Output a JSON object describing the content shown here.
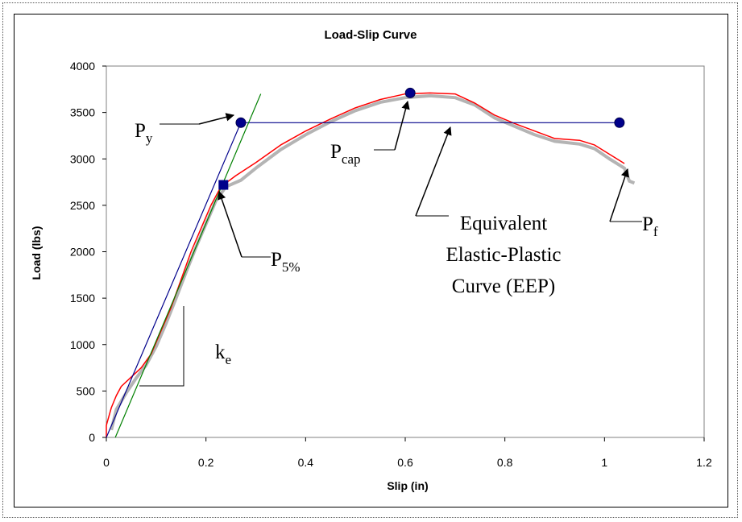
{
  "chart_data": {
    "type": "line",
    "title": "Load-Slip Curve",
    "xlabel": "Slip (in)",
    "ylabel": "Load (lbs)",
    "xlim": [
      0,
      1.2
    ],
    "ylim": [
      0,
      4000
    ],
    "xticks": [
      "0",
      "0.2",
      "0.4",
      "0.6",
      "0.8",
      "1",
      "1.2"
    ],
    "yticks": [
      "0",
      "500",
      "1000",
      "1500",
      "2000",
      "2500",
      "3000",
      "3500",
      "4000"
    ],
    "grid": false,
    "legend": "none",
    "series": [
      {
        "color": "#ff0000",
        "values_xy": [
          [
            0,
            0
          ],
          [
            0,
            130
          ],
          [
            0.01,
            320
          ],
          [
            0.02,
            450
          ],
          [
            0.03,
            550
          ],
          [
            0.05,
            650
          ],
          [
            0.07,
            750
          ],
          [
            0.09,
            900
          ],
          [
            0.11,
            1150
          ],
          [
            0.13,
            1400
          ],
          [
            0.15,
            1700
          ],
          [
            0.17,
            2000
          ],
          [
            0.19,
            2250
          ],
          [
            0.21,
            2500
          ],
          [
            0.23,
            2700
          ],
          [
            0.26,
            2820
          ],
          [
            0.3,
            2960
          ],
          [
            0.35,
            3150
          ],
          [
            0.4,
            3300
          ],
          [
            0.45,
            3430
          ],
          [
            0.5,
            3550
          ],
          [
            0.55,
            3640
          ],
          [
            0.6,
            3700
          ],
          [
            0.65,
            3710
          ],
          [
            0.7,
            3700
          ],
          [
            0.74,
            3600
          ],
          [
            0.78,
            3470
          ],
          [
            0.82,
            3380
          ],
          [
            0.86,
            3300
          ],
          [
            0.9,
            3220
          ],
          [
            0.95,
            3200
          ],
          [
            0.98,
            3150
          ],
          [
            1.01,
            3050
          ],
          [
            1.04,
            2950
          ]
        ]
      },
      {
        "color": "#b4b4b4",
        "values_xy": [
          [
            0.01,
            80
          ],
          [
            0.02,
            300
          ],
          [
            0.04,
            480
          ],
          [
            0.06,
            640
          ],
          [
            0.08,
            780
          ],
          [
            0.1,
            980
          ],
          [
            0.12,
            1230
          ],
          [
            0.14,
            1500
          ],
          [
            0.16,
            1780
          ],
          [
            0.18,
            2050
          ],
          [
            0.2,
            2300
          ],
          [
            0.22,
            2550
          ],
          [
            0.24,
            2700
          ],
          [
            0.27,
            2770
          ],
          [
            0.3,
            2900
          ],
          [
            0.35,
            3100
          ],
          [
            0.4,
            3260
          ],
          [
            0.45,
            3400
          ],
          [
            0.5,
            3520
          ],
          [
            0.55,
            3610
          ],
          [
            0.6,
            3660
          ],
          [
            0.65,
            3680
          ],
          [
            0.7,
            3660
          ],
          [
            0.74,
            3580
          ],
          [
            0.78,
            3440
          ],
          [
            0.82,
            3350
          ],
          [
            0.86,
            3260
          ],
          [
            0.9,
            3190
          ],
          [
            0.95,
            3160
          ],
          [
            0.98,
            3110
          ],
          [
            1.01,
            3000
          ],
          [
            1.04,
            2900
          ],
          [
            1.05,
            2760
          ],
          [
            1.06,
            2740
          ]
        ]
      },
      {
        "color": "#00008b",
        "values_xy": [
          [
            0,
            0
          ],
          [
            0.27,
            3390
          ],
          [
            1.03,
            3390
          ]
        ]
      },
      {
        "color": "#008000",
        "values_xy": [
          [
            0.018,
            0
          ],
          [
            0.31,
            3700
          ]
        ]
      }
    ],
    "points": [
      {
        "x": 0.27,
        "y": 3390
      },
      {
        "x": 0.61,
        "y": 3710
      },
      {
        "x": 1.03,
        "y": 3390
      },
      {
        "x": 0.235,
        "y": 2720,
        "shape": "square"
      }
    ],
    "annotations": [
      {
        "main": "P",
        "sub": "y"
      },
      {
        "main": "P",
        "sub": "cap"
      },
      {
        "main": "P",
        "sub": "5%"
      },
      {
        "main": "P",
        "sub": "f"
      },
      {
        "main": "k",
        "sub": "e"
      },
      {
        "main": "Equivalent"
      },
      {
        "main": "Elastic-Plastic"
      },
      {
        "main": "Curve (EEP)"
      }
    ]
  }
}
